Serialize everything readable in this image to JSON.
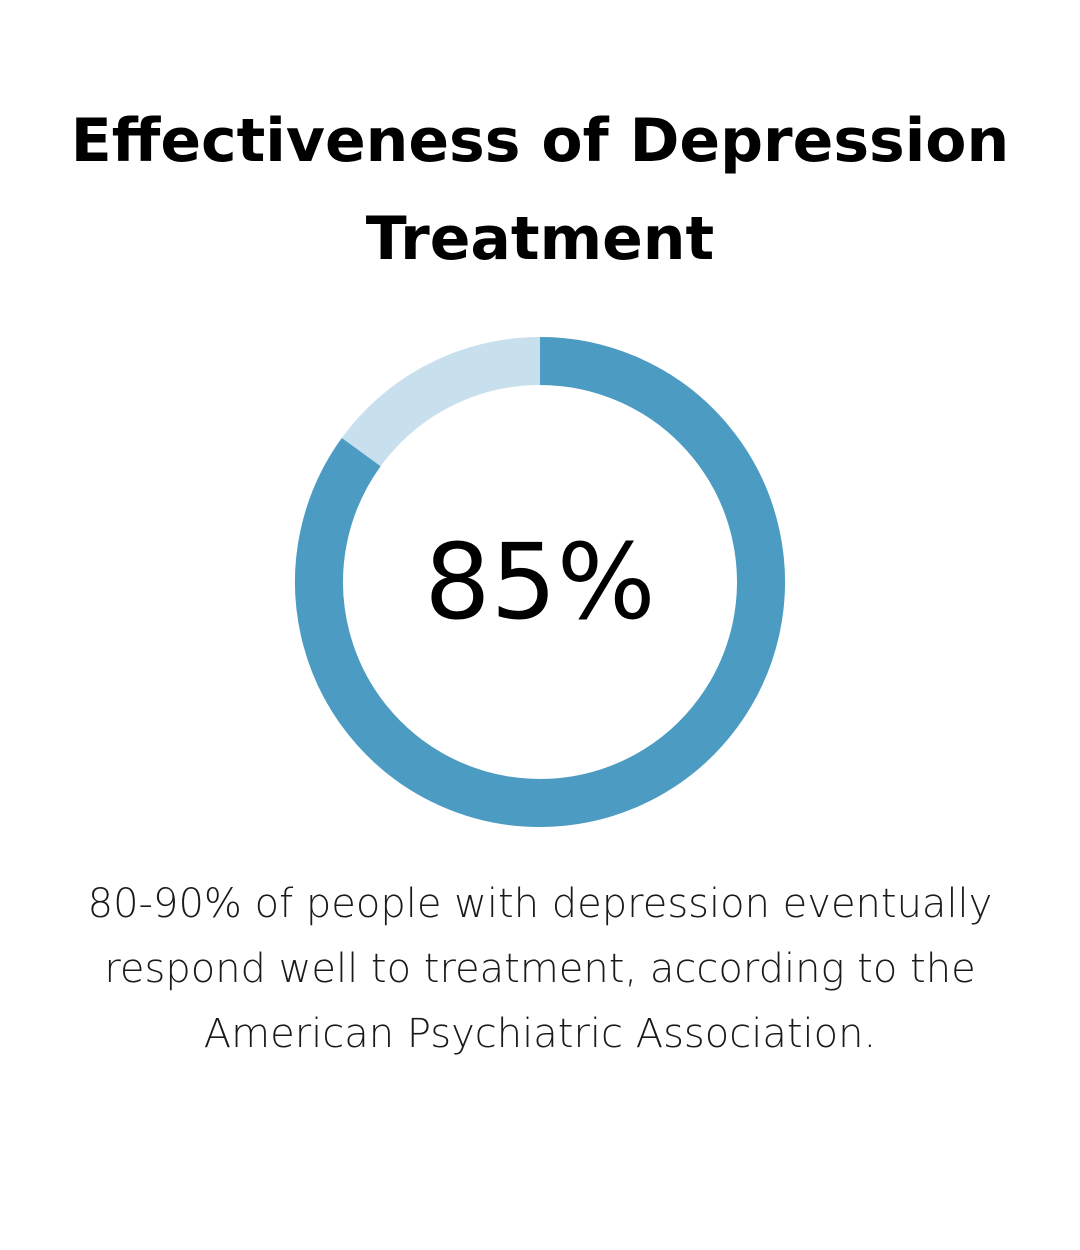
{
  "chart_data": {
    "type": "donut",
    "title": "Effectiveness of Depression Treatment",
    "value": 85,
    "value_label": "85%",
    "ylim": [
      0,
      100
    ],
    "color": "#4c9bc2",
    "track_color": "#c8e0ee",
    "caption": "80-90% of people with depression eventually respond well to treatment, according to the American Psychiatric Association."
  }
}
